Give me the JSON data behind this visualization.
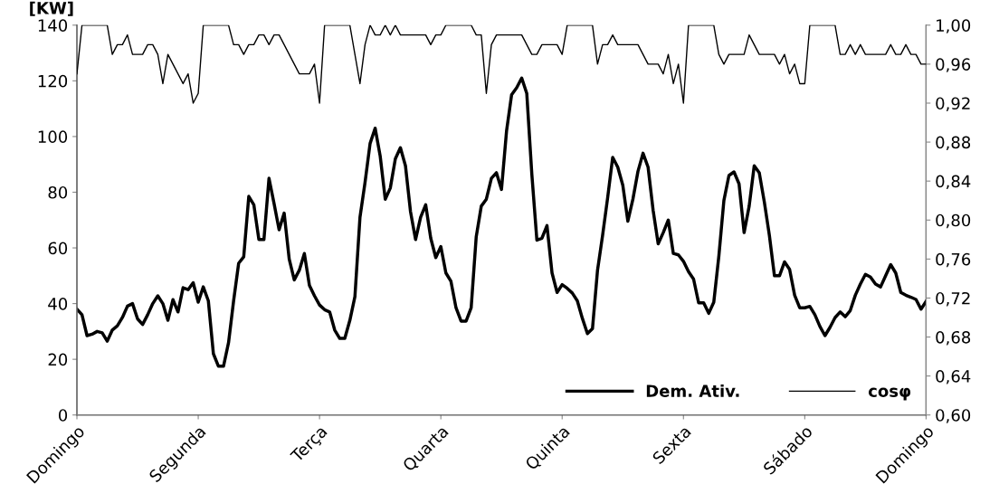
{
  "chart_data": {
    "type": "line",
    "ylabel": "[KW]",
    "ylim": [
      0,
      140
    ],
    "yticks": [
      0,
      20,
      40,
      60,
      80,
      100,
      120,
      140
    ],
    "y2lim": [
      0.6,
      1.0
    ],
    "y2ticks": [
      {
        "value": 0.6,
        "label": "0,60"
      },
      {
        "value": 0.64,
        "label": "0,64"
      },
      {
        "value": 0.68,
        "label": "0,68"
      },
      {
        "value": 0.72,
        "label": "0,72"
      },
      {
        "value": 0.76,
        "label": "0,76"
      },
      {
        "value": 0.8,
        "label": "0,80"
      },
      {
        "value": 0.84,
        "label": "0,84"
      },
      {
        "value": 0.88,
        "label": "0,88"
      },
      {
        "value": 0.92,
        "label": "0,92"
      },
      {
        "value": 0.96,
        "label": "0,96"
      },
      {
        "value": 1.0,
        "label": "1,00"
      }
    ],
    "categories": [
      "Domingo",
      null,
      null,
      null,
      null,
      null,
      null,
      null,
      null,
      null,
      null,
      null,
      null,
      null,
      null,
      null,
      null,
      null,
      null,
      null,
      null,
      null,
      null,
      null,
      "Segunda",
      null,
      null,
      null,
      null,
      null,
      null,
      null,
      null,
      null,
      null,
      null,
      null,
      null,
      null,
      null,
      null,
      null,
      null,
      null,
      null,
      null,
      null,
      null,
      "Terça",
      null,
      null,
      null,
      null,
      null,
      null,
      null,
      null,
      null,
      null,
      null,
      null,
      null,
      null,
      null,
      null,
      null,
      null,
      null,
      null,
      null,
      null,
      null,
      "Quarta",
      null,
      null,
      null,
      null,
      null,
      null,
      null,
      null,
      null,
      null,
      null,
      null,
      null,
      null,
      null,
      null,
      null,
      null,
      null,
      null,
      null,
      null,
      null,
      "Quinta",
      null,
      null,
      null,
      null,
      null,
      null,
      null,
      null,
      null,
      null,
      null,
      null,
      null,
      null,
      null,
      null,
      null,
      null,
      null,
      null,
      null,
      null,
      null,
      "Sexta",
      null,
      null,
      null,
      null,
      null,
      null,
      null,
      null,
      null,
      null,
      null,
      null,
      null,
      null,
      null,
      null,
      null,
      null,
      null,
      null,
      null,
      null,
      null,
      "Sábado",
      null,
      null,
      null,
      null,
      null,
      null,
      null,
      null,
      null,
      null,
      null,
      null,
      null,
      null,
      null,
      null,
      null,
      null,
      null,
      null,
      null,
      null,
      null,
      "Domingo"
    ],
    "grid": false,
    "legend": "bottom right",
    "marker": "none",
    "line_style": "solid",
    "series": [
      {
        "name": "Dem. Ativ.",
        "color": "#000000",
        "values": [
          38.0,
          36,
          28.5,
          29,
          30,
          29.5,
          26.5,
          30.5,
          32,
          35,
          39.1,
          40,
          34.5,
          32.5,
          36,
          40,
          42.8,
          40,
          34,
          41.4,
          37,
          45.7,
          45,
          47.5,
          40.5,
          46,
          41,
          22,
          17.5,
          17.5,
          26,
          41,
          54.5,
          56.8,
          78.5,
          75.5,
          63,
          63,
          85,
          76,
          66.5,
          72.5,
          56,
          48.5,
          52,
          58,
          46.5,
          42.8,
          39.5,
          37.8,
          37,
          30.5,
          27.5,
          27.5,
          34,
          42.5,
          71,
          83.5,
          97.5,
          103,
          93,
          77.5,
          81.5,
          92,
          96,
          89.5,
          73,
          63,
          71,
          75.5,
          63.5,
          56.5,
          60.5,
          51,
          48,
          38.5,
          33.7,
          33.7,
          38.5,
          64,
          75,
          77.5,
          85,
          87,
          81,
          102,
          115,
          117.5,
          121,
          115.5,
          86.5,
          62.8,
          63.5,
          68,
          51,
          44,
          46.8,
          45.5,
          43.8,
          41,
          34.7,
          29.2,
          31,
          52,
          64.5,
          78,
          92.5,
          89,
          82.5,
          69.6,
          77.5,
          87.5,
          94,
          89,
          73.5,
          61.5,
          65.5,
          70,
          58,
          57.5,
          55.2,
          51.5,
          48.8,
          40.3,
          40.3,
          36.5,
          40.5,
          57,
          77,
          86,
          87.3,
          83,
          65.5,
          75,
          89.5,
          87,
          76.5,
          64.5,
          50,
          50,
          55,
          52.3,
          43,
          38.5,
          38.5,
          39,
          36,
          31.8,
          28.5,
          31.5,
          35,
          37,
          35.3,
          37.5,
          43,
          47,
          50.5,
          49.5,
          47,
          46,
          50,
          54,
          51,
          44,
          43,
          42.3,
          41.5,
          38,
          40.8
        ]
      },
      {
        "name": "cosφ",
        "color": "#000000",
        "axis": "y2",
        "values": [
          0.95,
          1.0,
          1.0,
          1.0,
          1.0,
          1.0,
          1.0,
          0.97,
          0.98,
          0.98,
          0.99,
          0.97,
          0.97,
          0.97,
          0.98,
          0.98,
          0.97,
          0.94,
          0.97,
          0.96,
          0.95,
          0.94,
          0.95,
          0.92,
          0.93,
          1.0,
          1.0,
          1.0,
          1.0,
          1.0,
          1.0,
          0.98,
          0.98,
          0.97,
          0.98,
          0.98,
          0.99,
          0.99,
          0.98,
          0.99,
          0.99,
          0.98,
          0.97,
          0.96,
          0.95,
          0.95,
          0.95,
          0.96,
          0.92,
          1.0,
          1.0,
          1.0,
          1.0,
          1.0,
          1.0,
          0.97,
          0.94,
          0.98,
          1.0,
          0.99,
          0.99,
          1.0,
          0.99,
          1.0,
          0.99,
          0.99,
          0.99,
          0.99,
          0.99,
          0.99,
          0.98,
          0.99,
          0.99,
          1.0,
          1.0,
          1.0,
          1.0,
          1.0,
          1.0,
          0.99,
          0.99,
          0.93,
          0.98,
          0.99,
          0.99,
          0.99,
          0.99,
          0.99,
          0.99,
          0.98,
          0.97,
          0.97,
          0.98,
          0.98,
          0.98,
          0.98,
          0.97,
          1.0,
          1.0,
          1.0,
          1.0,
          1.0,
          1.0,
          0.96,
          0.98,
          0.98,
          0.99,
          0.98,
          0.98,
          0.98,
          0.98,
          0.98,
          0.97,
          0.96,
          0.96,
          0.96,
          0.95,
          0.97,
          0.94,
          0.96,
          0.92,
          1.0,
          1.0,
          1.0,
          1.0,
          1.0,
          1.0,
          0.97,
          0.96,
          0.97,
          0.97,
          0.97,
          0.97,
          0.99,
          0.98,
          0.97,
          0.97,
          0.97,
          0.97,
          0.96,
          0.97,
          0.95,
          0.96,
          0.94,
          0.94,
          1.0,
          1.0,
          1.0,
          1.0,
          1.0,
          1.0,
          0.97,
          0.97,
          0.98,
          0.97,
          0.98,
          0.97,
          0.97,
          0.97,
          0.97,
          0.97,
          0.98,
          0.97,
          0.97,
          0.98,
          0.97,
          0.97,
          0.96,
          0.96
        ]
      }
    ]
  }
}
